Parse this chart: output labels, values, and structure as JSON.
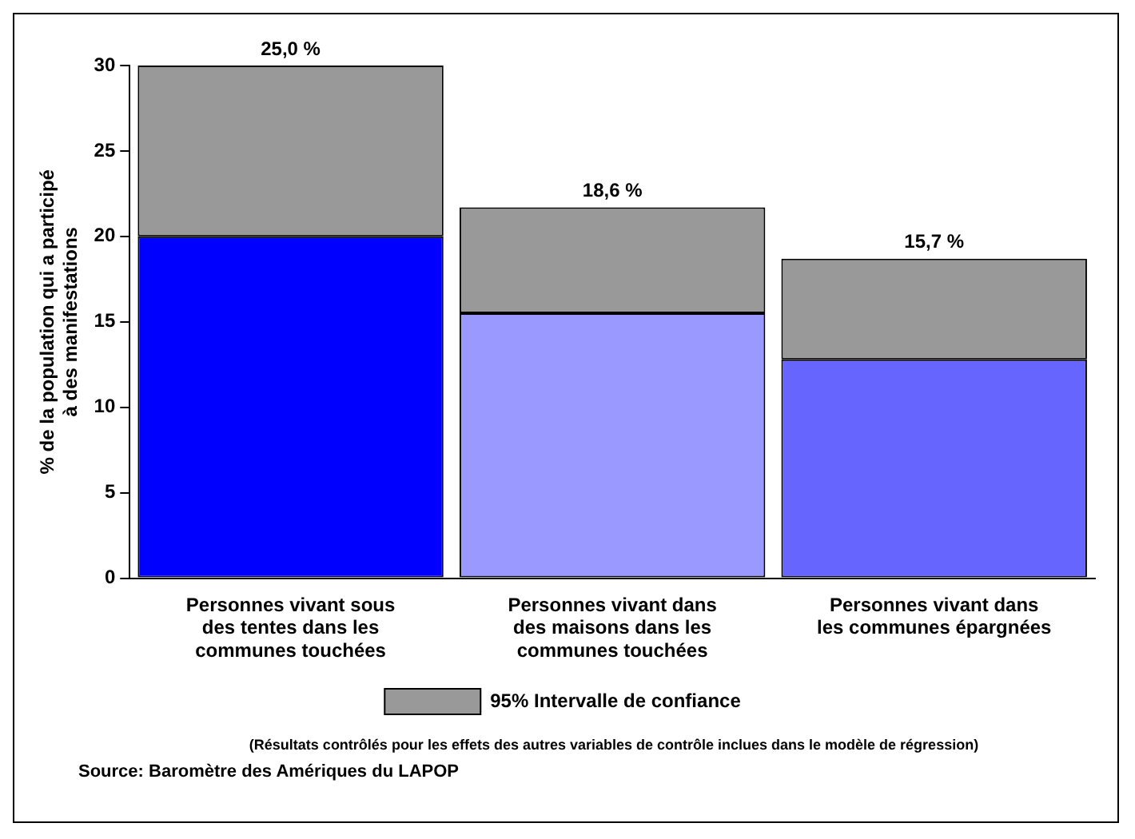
{
  "chart_data": {
    "type": "bar",
    "stacked": true,
    "ylabel": "% de la population qui a participé à des manifestations",
    "categories": [
      "Personnes vivant sous des tentes dans les communes touchées",
      "Personnes vivant dans des maisons dans les communes touchées",
      "Personnes vivant dans les communes épargnées"
    ],
    "series": [
      {
        "colors": [
          "#0000ff",
          "#9999ff",
          "#6666ff"
        ],
        "values": [
          20,
          15.5,
          12.8
        ]
      },
      {
        "name": "95% Intervalle de confiance",
        "color": "#999999",
        "values": [
          10,
          6.2,
          5.9
        ]
      }
    ],
    "ylim": [
      0,
      30
    ],
    "yticks": [
      0,
      5,
      10,
      15,
      20,
      25,
      30
    ],
    "grid": false,
    "legend": "bottom",
    "annotations": [
      {
        "text": "25,0 %",
        "x": "Personnes vivant sous des tentes dans les communes touchées",
        "y": 30
      },
      {
        "text": "18,6 %",
        "x": "Personnes vivant dans des maisons dans les communes touchées",
        "y": 21.7
      },
      {
        "text": "15,7 %",
        "x": "Personnes vivant dans les communes épargnées",
        "y": 18.7
      },
      "(Résultats contrôlés pour les effets des autres variables de contrôle inclues dans le modèle de régression)",
      "Source: Baromètre des Amériques du LAPOP"
    ]
  }
}
